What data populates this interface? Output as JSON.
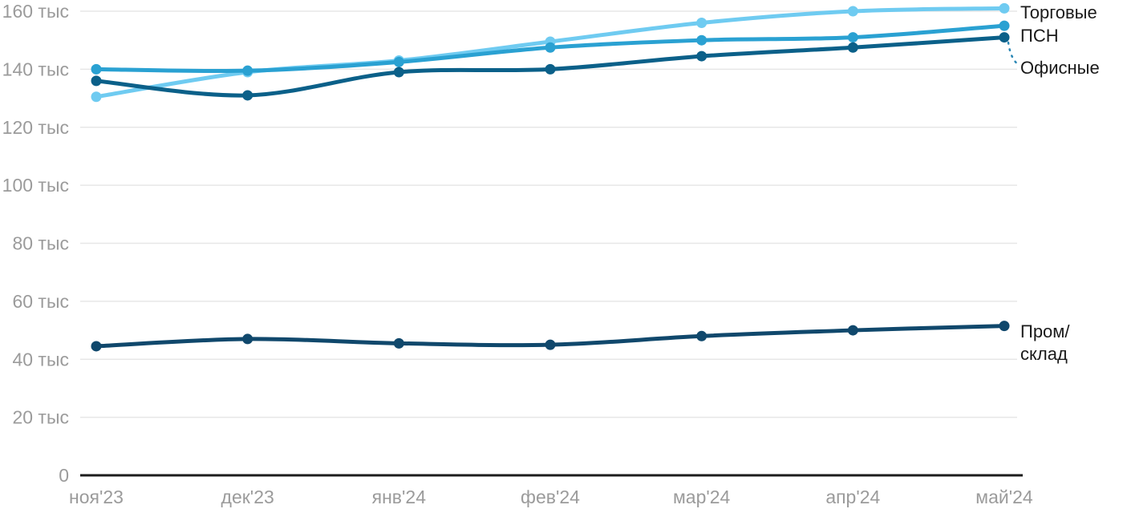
{
  "chart_data": {
    "type": "line",
    "title": "",
    "xlabel": "",
    "ylabel": "",
    "ylim": [
      0,
      160
    ],
    "grid": true,
    "legend_position": "right-end-labels",
    "unit": "тыс",
    "categories": [
      "ноя'23",
      "дек'23",
      "янв'24",
      "фев'24",
      "мар'24",
      "апр'24",
      "май'24"
    ],
    "y_ticks": [
      {
        "value": 0,
        "label": "0"
      },
      {
        "value": 20,
        "label": "20 тыс"
      },
      {
        "value": 40,
        "label": "40 тыс"
      },
      {
        "value": 60,
        "label": "60 тыс"
      },
      {
        "value": 80,
        "label": "80 тыс"
      },
      {
        "value": 100,
        "label": "100 тыс"
      },
      {
        "value": 120,
        "label": "120 тыс"
      },
      {
        "value": 140,
        "label": "140 тыс"
      },
      {
        "value": 160,
        "label": "160 тыс"
      }
    ],
    "series": [
      {
        "name": "Торговые",
        "label_lines": [
          "Торговые"
        ],
        "color": "#6FCBF1",
        "values": [
          130.5,
          139,
          143,
          149.5,
          156,
          160,
          161
        ]
      },
      {
        "name": "ПСН",
        "label_lines": [
          "ПСН"
        ],
        "color": "#2AA1D2",
        "values": [
          140,
          139.5,
          142.5,
          147.5,
          150,
          151,
          155
        ]
      },
      {
        "name": "Офисные",
        "label_lines": [
          "Офисные"
        ],
        "color": "#0B6089",
        "values": [
          136,
          131,
          139,
          140,
          144.5,
          147.5,
          151
        ],
        "leader_line": true
      },
      {
        "name": "Пром/склад",
        "label_lines": [
          "Пром/",
          "склад"
        ],
        "color": "#10486C",
        "values": [
          44.5,
          47,
          45.5,
          45,
          48,
          50,
          51.5
        ]
      }
    ],
    "colors": {
      "grid": "#e7e7e7",
      "axis": "#1c1c1c",
      "tick_text": "#9b9b9b",
      "series_label_text": "#1a1a1a",
      "leader": "#2B87B5"
    }
  }
}
